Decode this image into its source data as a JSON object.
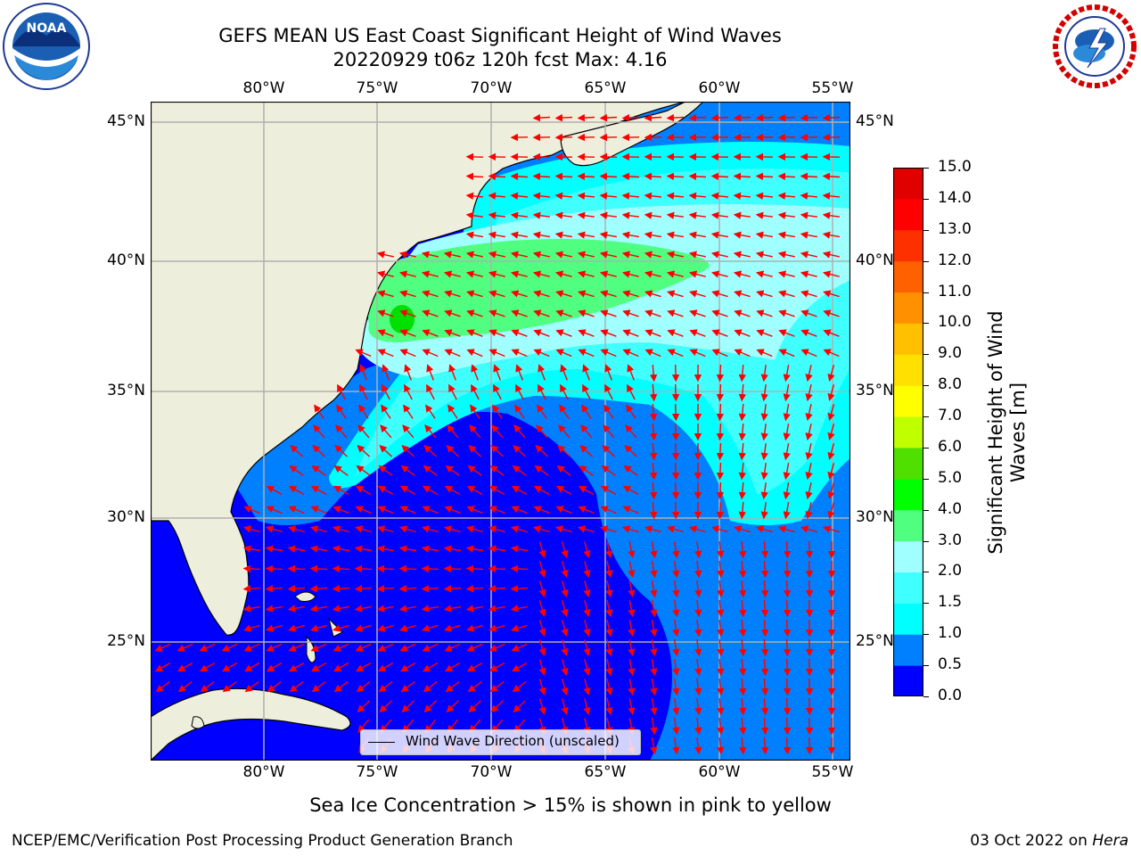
{
  "title": {
    "line1": "GEFS MEAN US East Coast Significant Height of Wind Waves",
    "line2": "20220929 t06z 120h fcst   Max: 4.16"
  },
  "logos": {
    "noaa_text": "NOAA",
    "nws_text": "NATIONAL WEATHER SERVICE"
  },
  "map": {
    "lon_labels": [
      "80°W",
      "75°W",
      "70°W",
      "65°W",
      "60°W",
      "55°W"
    ],
    "lat_labels": [
      "45°N",
      "40°N",
      "35°N",
      "30°N",
      "25°N"
    ],
    "lon_range": [
      -85,
      -54.5
    ],
    "lat_range": [
      20.5,
      46
    ],
    "land_color": "#eeeedd",
    "grid_color": "#b0b0b0",
    "arrow_color": "#ff0000",
    "legend": "Wind Wave Direction (unscaled)"
  },
  "colorbar": {
    "label": "Significant Height of Wind Waves [m]",
    "ticks": [
      "0.0",
      "0.5",
      "1.0",
      "1.5",
      "2.0",
      "3.0",
      "4.0",
      "5.0",
      "6.0",
      "7.0",
      "8.0",
      "9.0",
      "10.0",
      "11.0",
      "12.0",
      "13.0",
      "14.0",
      "15.0"
    ],
    "colors": [
      "#0000ff",
      "#0080ff",
      "#00ffff",
      "#40ffff",
      "#a0ffff",
      "#50ff80",
      "#00ff00",
      "#50e000",
      "#c0ff00",
      "#ffff00",
      "#ffe000",
      "#ffc000",
      "#ff9000",
      "#ff6000",
      "#ff3000",
      "#ff0000",
      "#e00000"
    ]
  },
  "footer": {
    "sea_ice": "Sea Ice Concentration > 15% is shown in pink to yellow",
    "left": "NCEP/EMC/Verification Post Processing Product Generation Branch",
    "right_prefix": "03 Oct 2022 on ",
    "right_machine": "Hera"
  }
}
